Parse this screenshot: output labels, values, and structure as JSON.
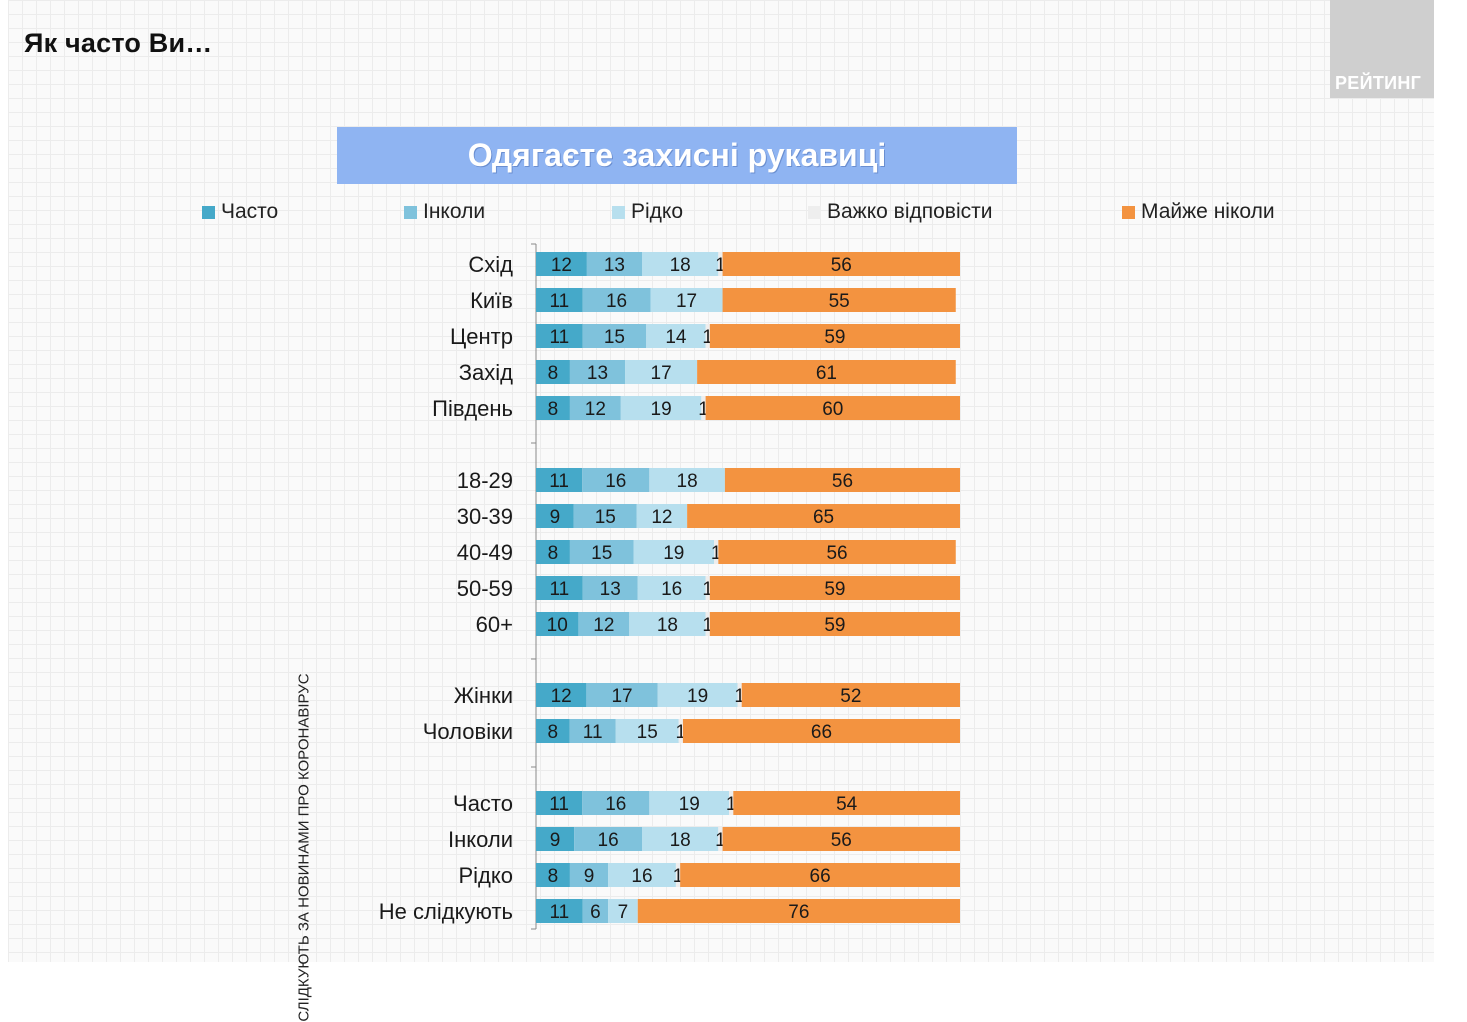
{
  "header": {
    "question": "Як часто Ви…",
    "logo_text": "РЕЙТИНГ"
  },
  "colors": {
    "chasto": "#45a9c9",
    "inkoly": "#7fc2dc",
    "ridko": "#b7dfee",
    "vazhko": "#eeeeee",
    "maizhe": "#f39340",
    "title_bg": "#8fb4f2"
  },
  "chart_data": {
    "type": "bar",
    "orientation": "horizontal",
    "stacked": true,
    "title": "Одягаєте захисні рукавиці",
    "legend": [
      "Часто",
      "Інколи",
      "Рідко",
      "Важко відповісти",
      "Майже ніколи"
    ],
    "group_label": "СЛІДКУЮТЬ ЗА НОВИНАМИ ПРО КОРОНАВІРУС",
    "xlim": [
      0,
      100
    ],
    "categories": [
      "Схід",
      "Київ",
      "Центр",
      "Захід",
      "Південь",
      "18-29",
      "30-39",
      "40-49",
      "50-59",
      "60+",
      "Жінки",
      "Чоловіки",
      "Часто",
      "Інколи",
      "Рідко",
      "Не слідкують"
    ],
    "groups": [
      [
        0,
        1,
        2,
        3,
        4
      ],
      [
        5,
        6,
        7,
        8,
        9
      ],
      [
        10,
        11
      ],
      [
        12,
        13,
        14,
        15
      ]
    ],
    "series": [
      {
        "name": "Часто",
        "values": [
          12,
          11,
          11,
          8,
          8,
          11,
          9,
          8,
          11,
          10,
          12,
          8,
          11,
          9,
          8,
          11
        ]
      },
      {
        "name": "Інколи",
        "values": [
          13,
          16,
          15,
          13,
          12,
          16,
          15,
          15,
          13,
          12,
          17,
          11,
          16,
          16,
          9,
          6
        ]
      },
      {
        "name": "Рідко",
        "values": [
          18,
          17,
          14,
          17,
          19,
          18,
          12,
          19,
          16,
          18,
          19,
          15,
          19,
          18,
          16,
          7
        ]
      },
      {
        "name": "Важко відповісти",
        "values": [
          1,
          0,
          1,
          0,
          1,
          0,
          0,
          1,
          1,
          1,
          1,
          1,
          1,
          1,
          1,
          0
        ]
      },
      {
        "name": "Майже ніколи",
        "values": [
          56,
          55,
          59,
          61,
          60,
          56,
          65,
          56,
          59,
          59,
          52,
          66,
          54,
          56,
          66,
          76
        ]
      }
    ]
  }
}
